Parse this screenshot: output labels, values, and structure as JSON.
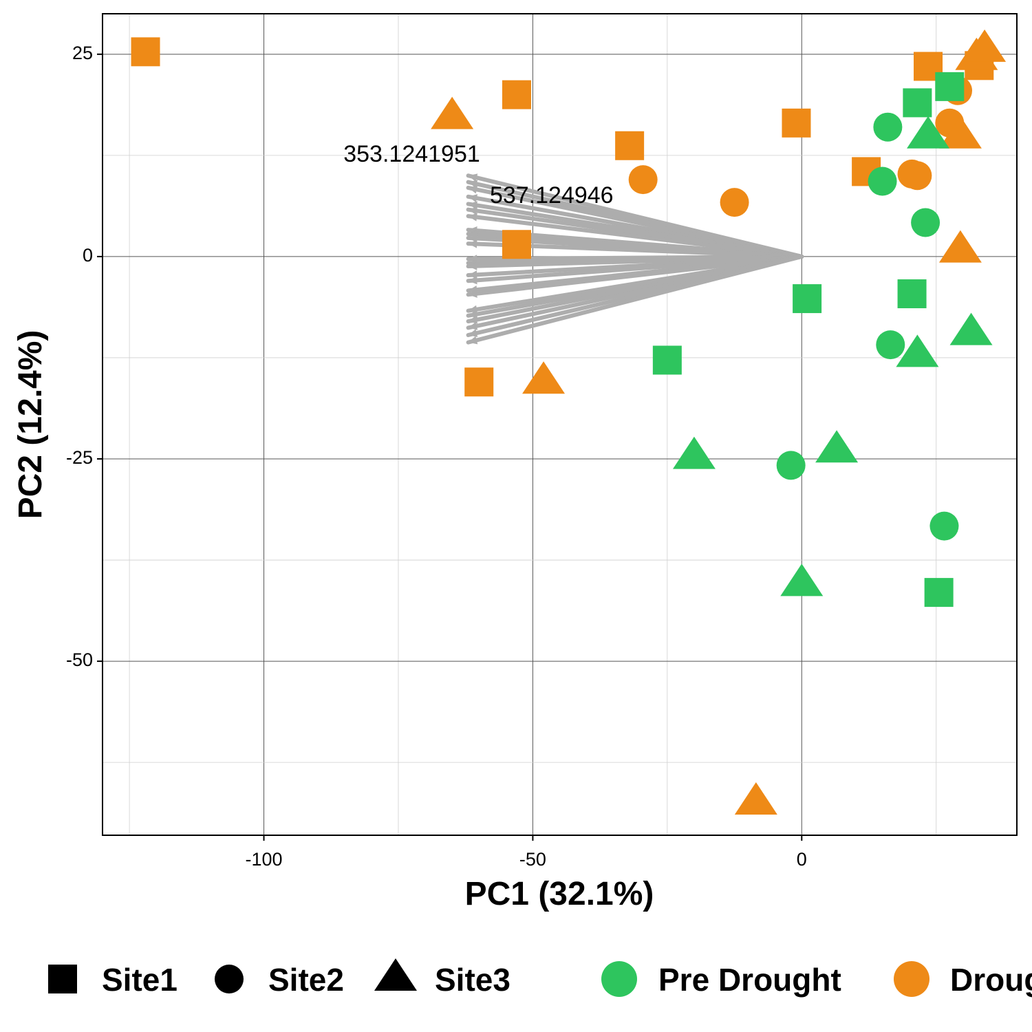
{
  "chart_data": {
    "type": "scatter",
    "xlabel": "PC1 (32.1%)",
    "ylabel": "PC2 (12.4%)",
    "xlim": [
      -130,
      40
    ],
    "ylim": [
      -71.5,
      30
    ],
    "x_ticks": [
      -100,
      -50,
      0
    ],
    "x_tick_labels": [
      "-100",
      "-50",
      "0"
    ],
    "y_ticks": [
      25,
      0,
      -25,
      -50
    ],
    "y_tick_labels": [
      "25",
      "0",
      "-25",
      "-50"
    ],
    "grid": true,
    "colors": {
      "Pre Drought": "#2ec55e",
      "Drought": "#ee8a17",
      "loading_arrow": "#adadad"
    },
    "shape_legend": [
      {
        "shape": "square",
        "label": "Site1"
      },
      {
        "shape": "circle",
        "label": "Site2"
      },
      {
        "shape": "triangle",
        "label": "Site3"
      }
    ],
    "color_legend": [
      {
        "group": "Pre Drought",
        "label": "Pre Drought"
      },
      {
        "group": "Drought",
        "label": "Drought"
      }
    ],
    "legend_position": "bottom",
    "points": [
      {
        "x": -122,
        "y": 25.3,
        "site": "Site1",
        "group": "Drought"
      },
      {
        "x": -53,
        "y": 20.0,
        "site": "Site1",
        "group": "Drought"
      },
      {
        "x": -32,
        "y": 13.7,
        "site": "Site1",
        "group": "Drought"
      },
      {
        "x": -1,
        "y": 16.5,
        "site": "Site1",
        "group": "Drought"
      },
      {
        "x": 12,
        "y": 10.5,
        "site": "Site1",
        "group": "Drought"
      },
      {
        "x": 23.5,
        "y": 23.5,
        "site": "Site1",
        "group": "Drought"
      },
      {
        "x": 33,
        "y": 23.6,
        "site": "Site1",
        "group": "Drought"
      },
      {
        "x": -53,
        "y": 1.5,
        "site": "Site1",
        "group": "Drought"
      },
      {
        "x": -60,
        "y": -15.5,
        "site": "Site1",
        "group": "Drought"
      },
      {
        "x": -29.5,
        "y": 9.5,
        "site": "Site2",
        "group": "Drought"
      },
      {
        "x": -12.5,
        "y": 6.7,
        "site": "Site2",
        "group": "Drought"
      },
      {
        "x": 20.5,
        "y": 10.2,
        "site": "Site2",
        "group": "Drought"
      },
      {
        "x": 21.5,
        "y": 10.0,
        "site": "Site2",
        "group": "Drought"
      },
      {
        "x": 27.5,
        "y": 16.5,
        "site": "Site2",
        "group": "Drought"
      },
      {
        "x": 29,
        "y": 20.5,
        "site": "Site2",
        "group": "Drought"
      },
      {
        "x": -65,
        "y": 17.2,
        "site": "Site3",
        "group": "Drought"
      },
      {
        "x": -48,
        "y": -15.5,
        "site": "Site3",
        "group": "Drought"
      },
      {
        "x": 29.5,
        "y": 0.7,
        "site": "Site3",
        "group": "Drought"
      },
      {
        "x": 29.5,
        "y": 14.8,
        "site": "Site3",
        "group": "Drought"
      },
      {
        "x": 32.5,
        "y": 24.5,
        "site": "Site3",
        "group": "Drought"
      },
      {
        "x": 34,
        "y": 25.5,
        "site": "Site3",
        "group": "Drought"
      },
      {
        "x": -8.5,
        "y": -67.5,
        "site": "Site3",
        "group": "Drought"
      },
      {
        "x": 21.5,
        "y": 19.0,
        "site": "Site1",
        "group": "Pre Drought"
      },
      {
        "x": 27.5,
        "y": 21.0,
        "site": "Site1",
        "group": "Pre Drought"
      },
      {
        "x": 1,
        "y": -5.2,
        "site": "Site1",
        "group": "Pre Drought"
      },
      {
        "x": 20.5,
        "y": -4.6,
        "site": "Site1",
        "group": "Pre Drought"
      },
      {
        "x": -25,
        "y": -12.8,
        "site": "Site1",
        "group": "Pre Drought"
      },
      {
        "x": 25.5,
        "y": -41.5,
        "site": "Site1",
        "group": "Pre Drought"
      },
      {
        "x": 16,
        "y": 16.0,
        "site": "Site2",
        "group": "Pre Drought"
      },
      {
        "x": 15,
        "y": 9.3,
        "site": "Site2",
        "group": "Pre Drought"
      },
      {
        "x": 23,
        "y": 4.2,
        "site": "Site2",
        "group": "Pre Drought"
      },
      {
        "x": 16.5,
        "y": -10.9,
        "site": "Site2",
        "group": "Pre Drought"
      },
      {
        "x": -2,
        "y": -25.8,
        "site": "Site2",
        "group": "Pre Drought"
      },
      {
        "x": 26.5,
        "y": -33.3,
        "site": "Site2",
        "group": "Pre Drought"
      },
      {
        "x": 23.5,
        "y": 14.8,
        "site": "Site3",
        "group": "Pre Drought"
      },
      {
        "x": 21.5,
        "y": -12.2,
        "site": "Site3",
        "group": "Pre Drought"
      },
      {
        "x": 31.5,
        "y": -9.5,
        "site": "Site3",
        "group": "Pre Drought"
      },
      {
        "x": -20,
        "y": -24.8,
        "site": "Site3",
        "group": "Pre Drought"
      },
      {
        "x": 6.5,
        "y": -24.0,
        "site": "Site3",
        "group": "Pre Drought"
      },
      {
        "x": 0,
        "y": -40.5,
        "site": "Site3",
        "group": "Pre Drought"
      }
    ],
    "loadings": [
      {
        "x": -62,
        "y": 10.0
      },
      {
        "x": -62,
        "y": 9.2
      },
      {
        "x": -62,
        "y": 8.5
      },
      {
        "x": -62,
        "y": 7.4
      },
      {
        "x": -62,
        "y": 6.5
      },
      {
        "x": -62,
        "y": 5.8
      },
      {
        "x": -62,
        "y": 5.0
      },
      {
        "x": -62,
        "y": 3.3
      },
      {
        "x": -62,
        "y": 2.8
      },
      {
        "x": -62,
        "y": 2.3
      },
      {
        "x": -62,
        "y": 1.6
      },
      {
        "x": -62,
        "y": -0.3
      },
      {
        "x": -62,
        "y": -0.8
      },
      {
        "x": -62,
        "y": -1.2
      },
      {
        "x": -62,
        "y": -2.3
      },
      {
        "x": -62,
        "y": -3.0
      },
      {
        "x": -62,
        "y": -4.2
      },
      {
        "x": -62,
        "y": -4.7
      },
      {
        "x": -62,
        "y": -6.7
      },
      {
        "x": -62,
        "y": -7.3
      },
      {
        "x": -62,
        "y": -8.0
      },
      {
        "x": -62,
        "y": -8.8
      },
      {
        "x": -62,
        "y": -9.7
      },
      {
        "x": -62,
        "y": -10.6
      }
    ],
    "annotations": [
      {
        "text": "353.1241951",
        "x": -72.5,
        "y": 12.5
      },
      {
        "text": "537.124946",
        "x": -46.5,
        "y": 7.4
      }
    ]
  }
}
